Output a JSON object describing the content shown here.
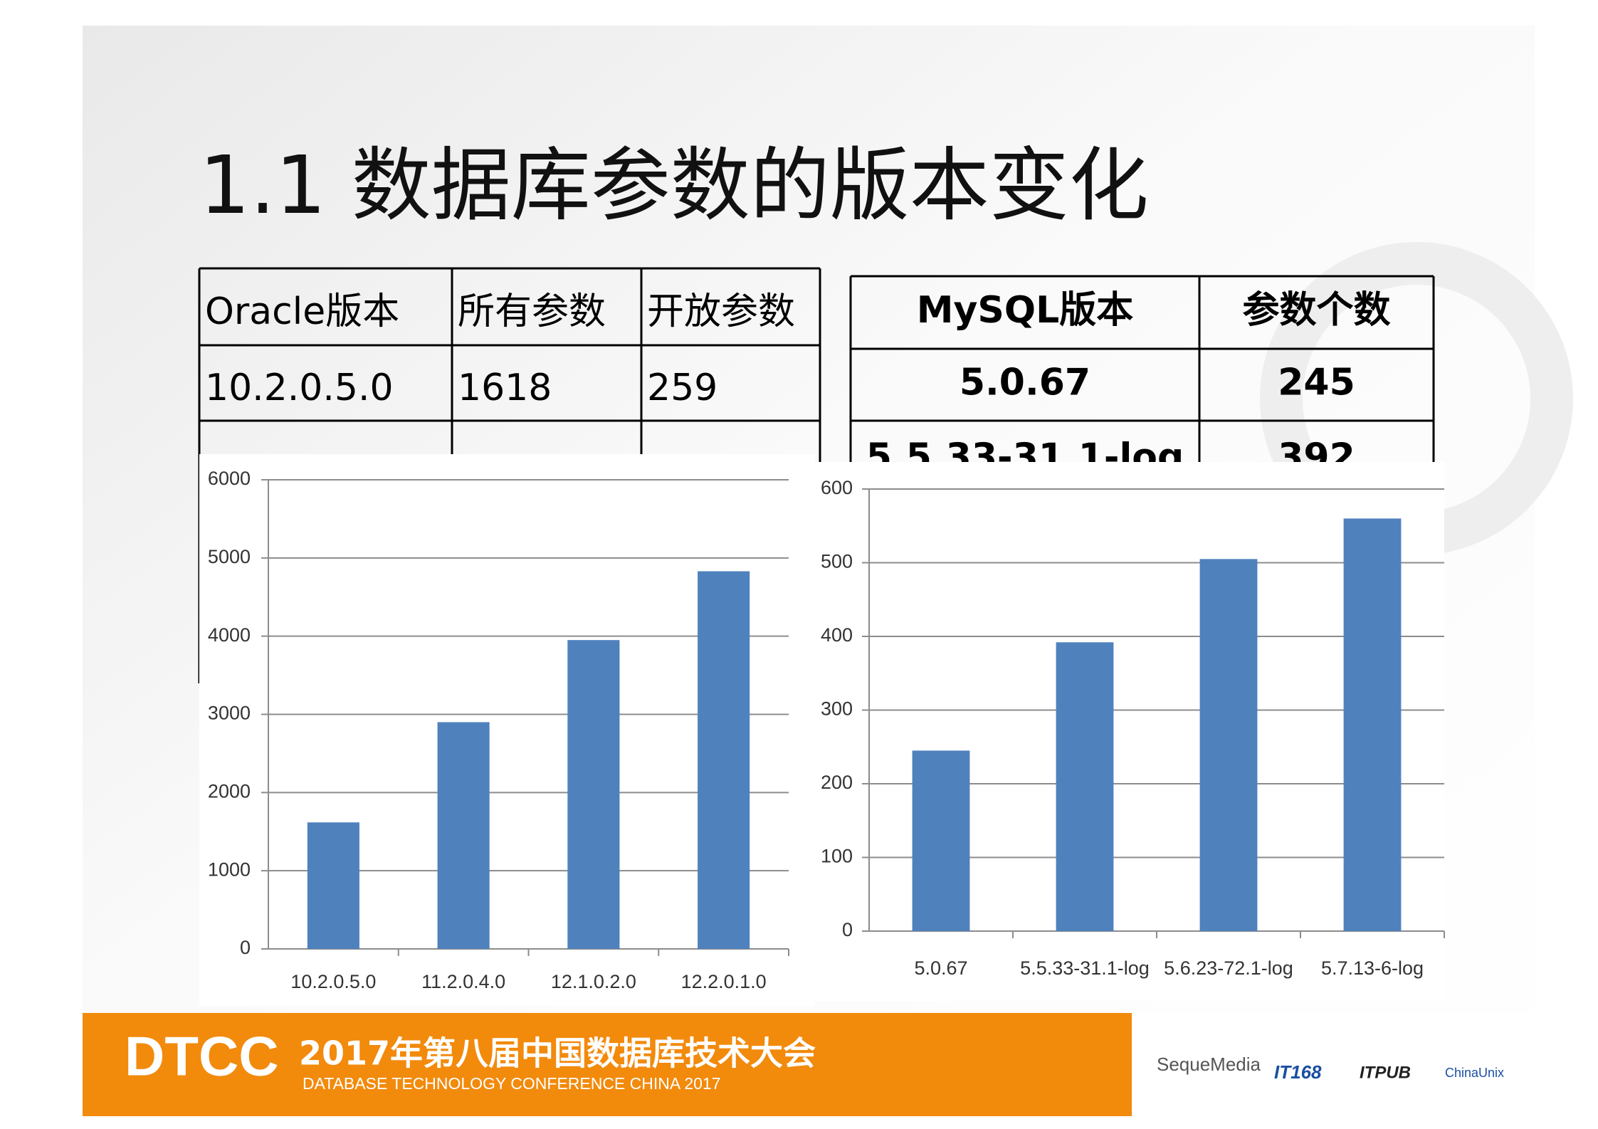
{
  "header": {
    "title": "1.1 数据库参数的版本变化"
  },
  "oracle_table": {
    "header": [
      "Oracle版本",
      "所有参数",
      "开放参数"
    ],
    "rows": [
      [
        "10.2.0.5.0",
        "1618",
        "259"
      ]
    ]
  },
  "mysql_table": {
    "header": [
      "MySQL版本",
      "参数个数"
    ],
    "rows": [
      [
        "5.0.67",
        "245"
      ],
      [
        "5.5.33-31.1-log",
        "392"
      ]
    ]
  },
  "chart_data": [
    {
      "type": "bar",
      "categories": [
        "10.2.0.5.0",
        "11.2.0.4.0",
        "12.1.0.2.0",
        "12.2.0.1.0"
      ],
      "values": [
        1618,
        2900,
        3950,
        4830
      ],
      "color": "#4f81bd",
      "ylim": [
        0,
        6000
      ],
      "yticks": [
        0,
        1000,
        2000,
        3000,
        4000,
        5000,
        6000
      ],
      "grid": true
    },
    {
      "type": "bar",
      "categories": [
        "5.0.67",
        "5.5.33-31.1-log",
        "5.6.23-72.1-log",
        "5.7.13-6-log"
      ],
      "values": [
        245,
        392,
        505,
        560
      ],
      "color": "#4f81bd",
      "ylim": [
        0,
        600
      ],
      "yticks": [
        0,
        100,
        200,
        300,
        400,
        500,
        600
      ],
      "grid": true
    }
  ],
  "footer": {
    "brand": "DTCC",
    "title": "2017年第八届中国数据库技术大会",
    "subtitle": "DATABASE TECHNOLOGY CONFERENCE CHINA 2017",
    "sponsors": [
      "SequeMedia",
      "IT168",
      "ITPUB",
      "ChinaUnix"
    ]
  }
}
